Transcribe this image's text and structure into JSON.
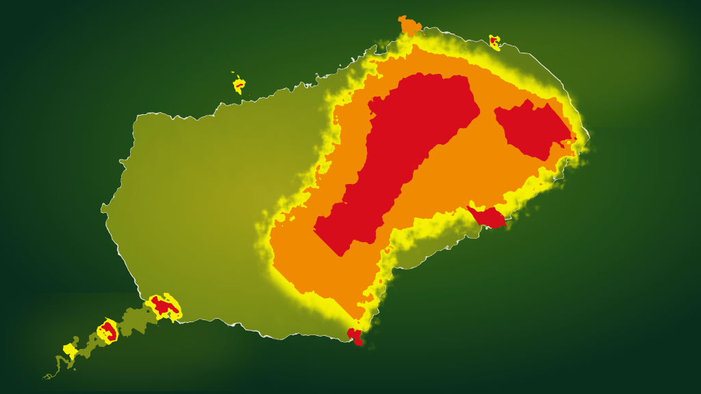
{
  "map": {
    "type": "heatmap-overlay",
    "colors": {
      "background": "#0f3a1a",
      "background_glow": "#3f6a12",
      "land": "#6f8a14",
      "land_light": "#a8a818",
      "heat_low": "#f5f000",
      "heat_mid": "#f08a00",
      "heat_high": "#d8101a",
      "coastline": "#e8e8e0"
    }
  }
}
